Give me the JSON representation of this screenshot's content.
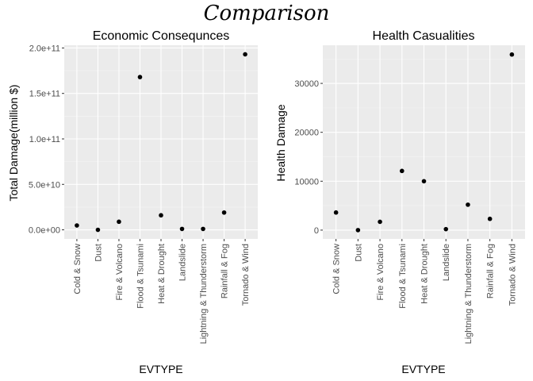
{
  "figure": {
    "title": "Comparison"
  },
  "chart_data": [
    {
      "type": "scatter",
      "title": "Economic Consequnces",
      "xlabel": "EVTYPE",
      "ylabel": "Total Damage(million $)",
      "categories": [
        "Cold & Snow",
        "Dust",
        "Fire & Volcano",
        "Flood & Tsunami",
        "Heat & Drought",
        "Landslide",
        "Lightning & Thunderstorm",
        "Rainfall & Fog",
        "Tornado & Wind"
      ],
      "values": [
        4800000000.0,
        0,
        8900000000.0,
        168000000000.0,
        16000000000.0,
        1000000000.0,
        1000000000.0,
        19000000000.0,
        193000000000.0
      ],
      "yticks": [
        0,
        50000000000.0,
        100000000000.0,
        150000000000.0,
        200000000000.0
      ],
      "ytick_labels": [
        "0.0e+00",
        "5.0e+10",
        "1.0e+11",
        "1.5e+11",
        "2.0e+11"
      ],
      "ylim": [
        -10000000000.0,
        203000000000.0
      ],
      "grid": true
    },
    {
      "type": "scatter",
      "title": "Health Casualities",
      "xlabel": "EVTYPE",
      "ylabel": "Health Damage",
      "categories": [
        "Cold & Snow",
        "Dust",
        "Fire & Volcano",
        "Flood & Tsunami",
        "Heat & Drought",
        "Landslide",
        "Lightning & Thunderstorm",
        "Rainfall & Fog",
        "Tornado & Wind"
      ],
      "values": [
        3600,
        0,
        1700,
        12100,
        10000,
        200,
        5200,
        2300,
        35900
      ],
      "yticks": [
        0,
        10000,
        20000,
        30000
      ],
      "ytick_labels": [
        "0",
        "10000",
        "20000",
        "30000"
      ],
      "ylim": [
        -1800,
        37800
      ],
      "grid": true
    }
  ]
}
